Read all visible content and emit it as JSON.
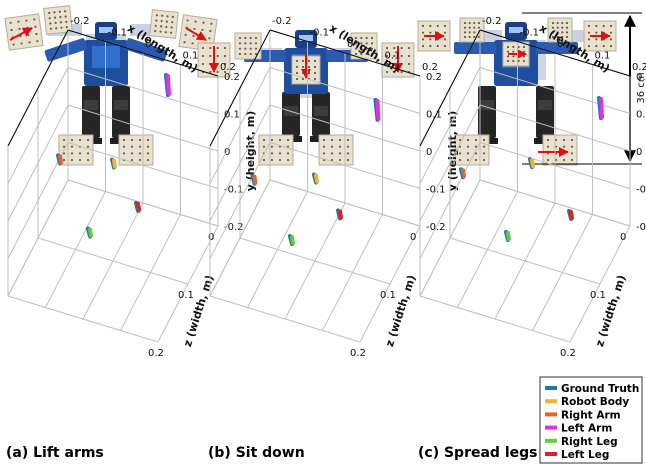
{
  "scale_bar": {
    "label": "36 cm"
  },
  "legend": {
    "entries": [
      {
        "label": "Ground Truth",
        "color": "#1f77b4"
      },
      {
        "label": "Robot Body",
        "color": "#f2b233"
      },
      {
        "label": "Right Arm",
        "color": "#e8632a"
      },
      {
        "label": "Left Arm",
        "color": "#e42fe4"
      },
      {
        "label": "Right Leg",
        "color": "#66cc33"
      },
      {
        "label": "Left Leg",
        "color": "#e32020"
      }
    ]
  },
  "panels": [
    {
      "caption": "(a)  Lift arms",
      "pose": "lift"
    },
    {
      "caption": "(b)  Sit down",
      "pose": "sit"
    },
    {
      "caption": "(c)  Spread legs",
      "pose": "spread"
    }
  ],
  "chart_data": {
    "type": "scatter3d",
    "axes": {
      "x": {
        "label": "x (length, m)",
        "ticks": [
          "-0.2",
          "-0.1",
          "0",
          "0.1",
          "0.2"
        ]
      },
      "y": {
        "label": "y (height, m)",
        "ticks": [
          "0.2",
          "0.1",
          "0",
          "-0.1",
          "-0.2"
        ]
      },
      "z": {
        "label": "z (width, m)",
        "ticks": [
          "0.2",
          "0.1",
          "0"
        ]
      }
    },
    "colors": {
      "Ground Truth": "#1f77b4",
      "Robot Body": "#f2b233",
      "Right Arm": "#e8632a",
      "Left Arm": "#e42fe4",
      "Right Leg": "#66cc33",
      "Left Leg": "#e32020"
    },
    "panels": [
      {
        "name": "Lift arms",
        "points": [
          {
            "series": "Right Arm",
            "x": -0.08,
            "y": 0.17,
            "z": 0.18
          },
          {
            "series": "Left Arm",
            "x": 0.08,
            "y": 0.17,
            "z": 0.02
          },
          {
            "series": "Robot Body",
            "x": 0.0,
            "y": 0.06,
            "z": 0.1
          },
          {
            "series": "Right Leg",
            "x": -0.04,
            "y": -0.09,
            "z": 0.13
          },
          {
            "series": "Left Leg",
            "x": 0.04,
            "y": -0.09,
            "z": 0.07
          }
        ]
      },
      {
        "name": "Sit down",
        "points": [
          {
            "series": "Right Arm",
            "x": -0.1,
            "y": 0.11,
            "z": 0.18
          },
          {
            "series": "Left Arm",
            "x": 0.1,
            "y": 0.11,
            "z": 0.02
          },
          {
            "series": "Robot Body",
            "x": 0.0,
            "y": 0.02,
            "z": 0.1
          },
          {
            "series": "Right Leg",
            "x": -0.04,
            "y": -0.11,
            "z": 0.13
          },
          {
            "series": "Left Leg",
            "x": 0.04,
            "y": -0.11,
            "z": 0.07
          }
        ]
      },
      {
        "name": "Spread legs",
        "points": [
          {
            "series": "Right Arm",
            "x": -0.12,
            "y": 0.09,
            "z": 0.16
          },
          {
            "series": "Left Arm",
            "x": 0.12,
            "y": 0.09,
            "z": 0.0
          },
          {
            "series": "Robot Body",
            "x": 0.0,
            "y": 0.03,
            "z": 0.08
          },
          {
            "series": "Right Leg",
            "x": -0.04,
            "y": -0.13,
            "z": 0.11
          },
          {
            "series": "Left Leg",
            "x": 0.08,
            "y": -0.13,
            "z": 0.05
          }
        ]
      }
    ]
  }
}
